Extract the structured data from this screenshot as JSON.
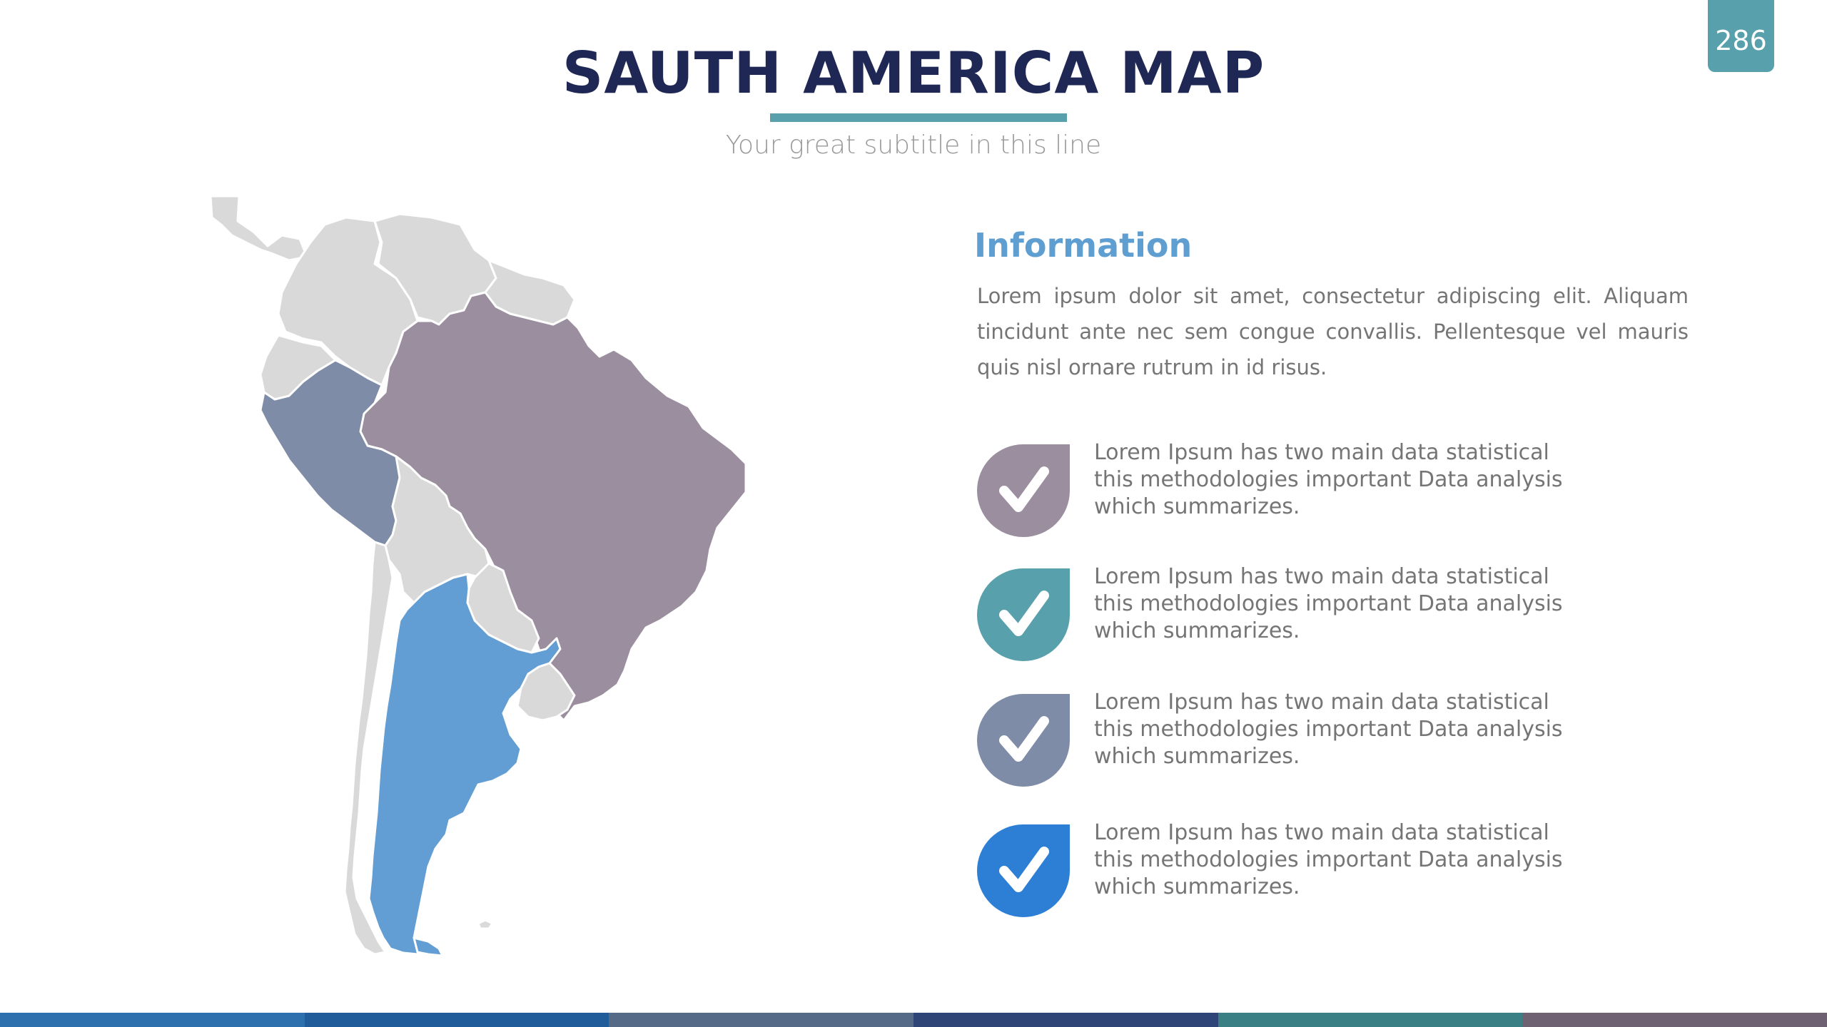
{
  "slide": {
    "number": "286",
    "title": "SAUTH AMERICA MAP",
    "subtitle": "Your great subtitle in this line"
  },
  "info": {
    "heading": "Information",
    "paragraph": "Lorem ipsum dolor sit amet, consectetur adipiscing elit. Aliquam tincidunt ante nec sem congue convallis. Pellentesque vel mauris quis nisl ornare rutrum in id risus."
  },
  "checklist": [
    {
      "text": "Lorem Ipsum has two main data statistical this methodologies important Data analysis which summarizes.",
      "color": "#9b8f9f",
      "icon": "checkmark-icon"
    },
    {
      "text": "Lorem Ipsum has two main data statistical this methodologies important Data analysis which summarizes.",
      "color": "#58a1ac",
      "icon": "checkmark-icon"
    },
    {
      "text": "Lorem Ipsum has two main data statistical this methodologies important Data analysis which summarizes.",
      "color": "#7e8ca7",
      "icon": "checkmark-icon"
    },
    {
      "text": "Lorem Ipsum has two main data statistical this methodologies important Data analysis which summarizes.",
      "color": "#2d7fd6",
      "icon": "checkmark-icon"
    }
  ],
  "map": {
    "highlighted_countries": [
      {
        "country": "Brazil",
        "color": "#9b8f9f"
      },
      {
        "country": "Peru",
        "color": "#7e8ca7"
      },
      {
        "country": "Argentina",
        "color": "#629ed3"
      }
    ],
    "base_color": "#d9d9d9"
  },
  "colors": {
    "accent": "#58a1ac",
    "title": "#1f2855",
    "bottom_bar": [
      "#2e6fae",
      "#205c99",
      "#556a86",
      "#2f4477",
      "#3a7f83",
      "#6e6171"
    ]
  }
}
